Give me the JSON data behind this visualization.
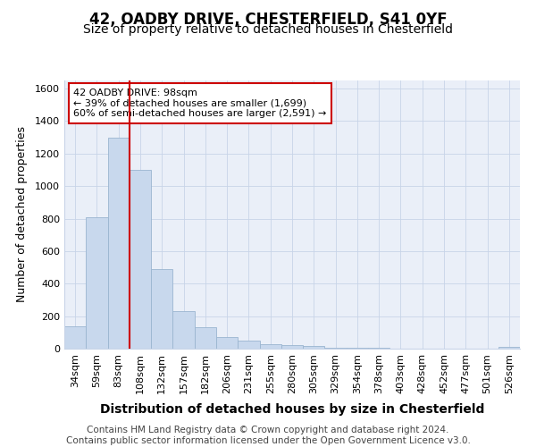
{
  "title1": "42, OADBY DRIVE, CHESTERFIELD, S41 0YF",
  "title2": "Size of property relative to detached houses in Chesterfield",
  "xlabel": "Distribution of detached houses by size in Chesterfield",
  "ylabel": "Number of detached properties",
  "categories": [
    "34sqm",
    "59sqm",
    "83sqm",
    "108sqm",
    "132sqm",
    "157sqm",
    "182sqm",
    "206sqm",
    "231sqm",
    "255sqm",
    "280sqm",
    "305sqm",
    "329sqm",
    "354sqm",
    "378sqm",
    "403sqm",
    "428sqm",
    "452sqm",
    "477sqm",
    "501sqm",
    "526sqm"
  ],
  "values": [
    140,
    810,
    1300,
    1100,
    490,
    230,
    130,
    70,
    50,
    30,
    20,
    15,
    5,
    3,
    3,
    2,
    2,
    2,
    2,
    2,
    10
  ],
  "bar_color": "#c8d8ed",
  "bar_edge_color": "#9ab5d0",
  "vline_color": "#cc0000",
  "annotation_text": "42 OADBY DRIVE: 98sqm\n← 39% of detached houses are smaller (1,699)\n60% of semi-detached houses are larger (2,591) →",
  "annotation_box_color": "white",
  "annotation_box_edge": "#cc0000",
  "ylim": [
    0,
    1650
  ],
  "yticks": [
    0,
    200,
    400,
    600,
    800,
    1000,
    1200,
    1400,
    1600
  ],
  "grid_color": "#c8d4e8",
  "bg_color": "#eaeff8",
  "footer": "Contains HM Land Registry data © Crown copyright and database right 2024.\nContains public sector information licensed under the Open Government Licence v3.0.",
  "title1_fontsize": 12,
  "title2_fontsize": 10,
  "xlabel_fontsize": 10,
  "ylabel_fontsize": 9,
  "tick_fontsize": 8,
  "footer_fontsize": 7.5
}
